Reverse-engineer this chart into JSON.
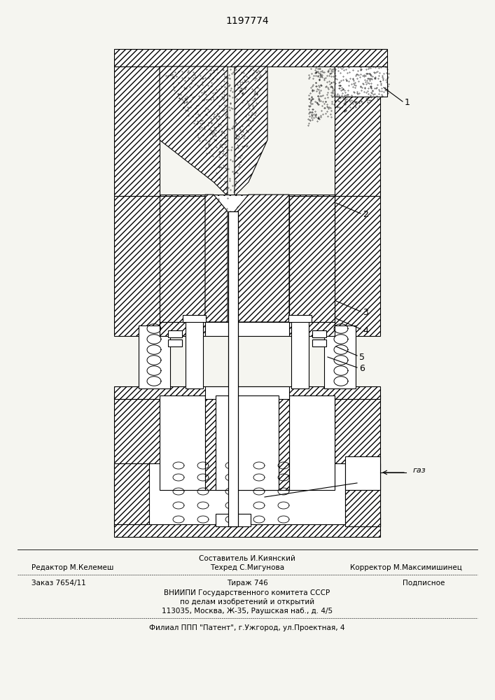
{
  "title": "1197774",
  "title_fontsize": 10,
  "bg_color": "#f5f5f0",
  "footer": {
    "line1_center": "Составитель И.Киянский",
    "line2_left": "Редактор М.Келемеш",
    "line2_center": "Техред С.Мигунова",
    "line2_right": "Корректор М.Максимишинец",
    "line3_left": "Заказ 7654/11",
    "line3_center": "Тираж 746",
    "line3_right": "Подписное",
    "line4": "ВНИИПИ Государственного комитета СССР",
    "line5": "по делам изобретений и открытий",
    "line6": "113035, Москва, Ж-35, Раушская наб., д. 4/5",
    "line7": "Филиал ППП \"Патент\", г.Ужгород, ул.Проектная, 4",
    "footer_fontsize": 7.5
  }
}
